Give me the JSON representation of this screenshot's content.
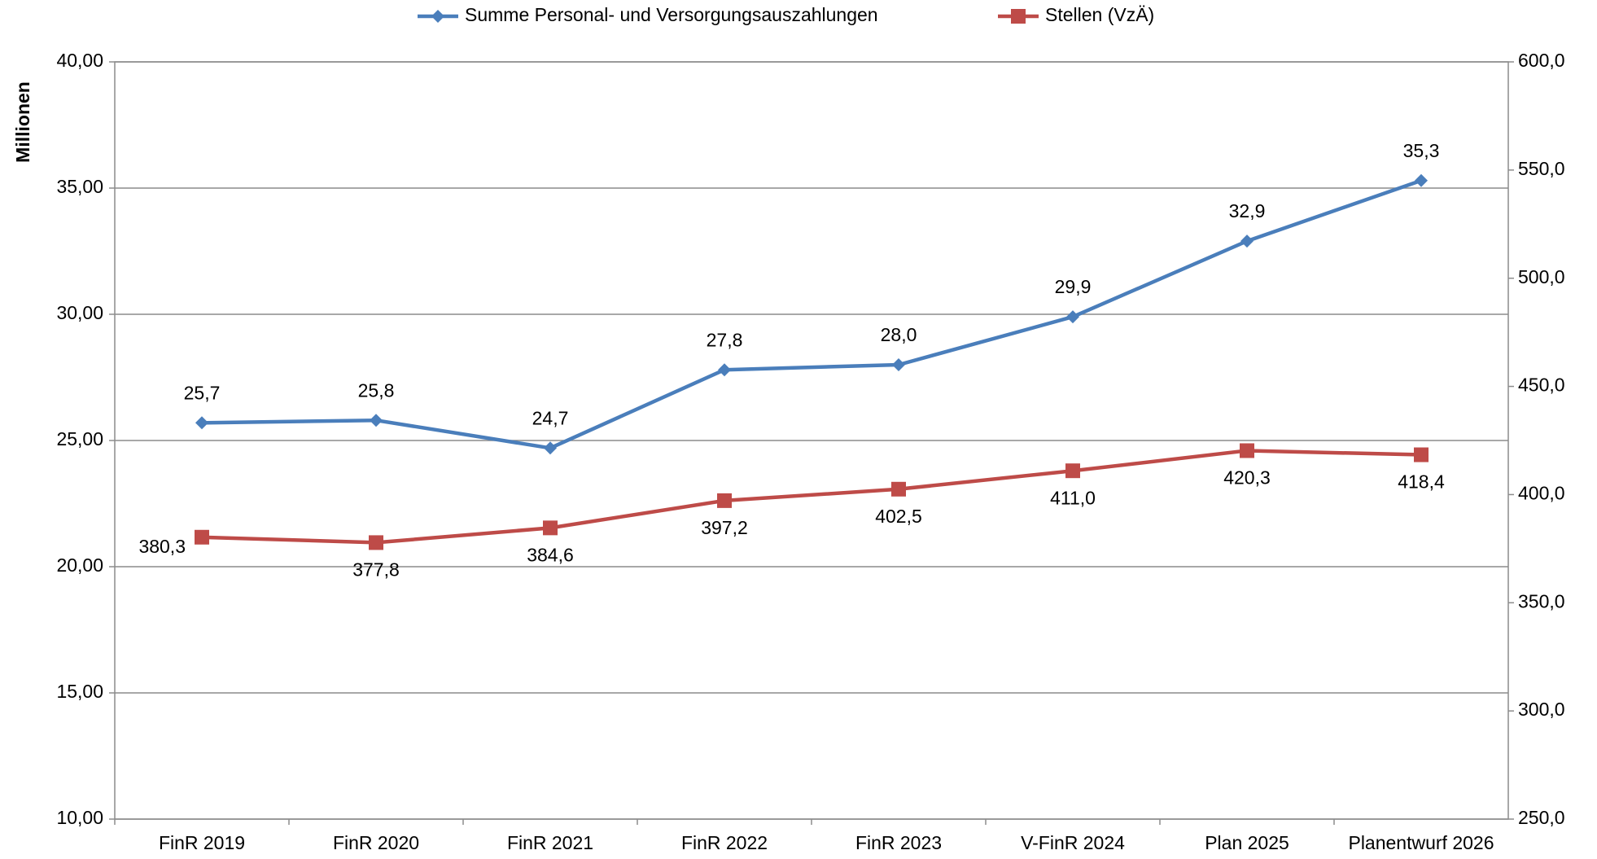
{
  "chart_data": {
    "type": "line",
    "y_label": "Millionen",
    "categories": [
      "FinR 2019",
      "FinR 2020",
      "FinR 2021",
      "FinR 2022",
      "FinR 2023",
      "V-FinR 2024",
      "Plan 2025",
      "Planentwurf 2026"
    ],
    "series": [
      {
        "name": "Summe Personal- und Versorgungsauszahlungen",
        "color": "#4a7ebb",
        "marker": "diamond",
        "values": [
          25.7,
          25.8,
          24.7,
          27.8,
          28.0,
          29.9,
          32.9,
          35.3
        ],
        "value_labels": [
          "25,7",
          "25,8",
          "24,7",
          "27,8",
          "28,0",
          "29,9",
          "32,9",
          "35,3"
        ]
      },
      {
        "name": "Stellen (VzÄ)",
        "color": "#be4b48",
        "marker": "square",
        "axis": "y2",
        "values": [
          380.3,
          377.8,
          384.6,
          397.2,
          402.5,
          411.0,
          420.3,
          418.4
        ],
        "value_labels": [
          "380,3",
          "377,8",
          "384,6",
          "397,2",
          "402,5",
          "411,0",
          "420,3",
          "418,4"
        ]
      }
    ],
    "ylim": [
      10,
      40
    ],
    "yticks": [
      {
        "value": 10,
        "label": "10,00"
      },
      {
        "value": 15,
        "label": "15,00"
      },
      {
        "value": 20,
        "label": "20,00"
      },
      {
        "value": 25,
        "label": "25,00"
      },
      {
        "value": 30,
        "label": "30,00"
      },
      {
        "value": 35,
        "label": "35,00"
      },
      {
        "value": 40,
        "label": "40,00"
      }
    ],
    "y2lim": [
      250,
      600
    ],
    "y2ticks": [
      {
        "value": 250,
        "label": "250,0"
      },
      {
        "value": 300,
        "label": "300,0"
      },
      {
        "value": 350,
        "label": "350,0"
      },
      {
        "value": 400,
        "label": "400,0"
      },
      {
        "value": 450,
        "label": "450,0"
      },
      {
        "value": 500,
        "label": "500,0"
      },
      {
        "value": 550,
        "label": "550,0"
      },
      {
        "value": 600,
        "label": "600,0"
      }
    ],
    "grid": true,
    "legend": "top"
  }
}
